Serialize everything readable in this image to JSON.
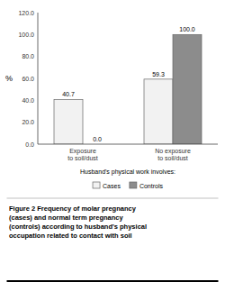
{
  "chart_data": {
    "type": "bar",
    "caption": "Figure 2 Frequency of molar pregnancy\n(cases) and normal term pregnancy\n(controls) according to husband's physical\noccupation related to contact with soil",
    "xlabel": "Husband's physical work involves:",
    "ylabel": "%",
    "categories": [
      "Exposure\nto soil/dust",
      "No exposure\nto soil/dust"
    ],
    "series": [
      {
        "name": "Cases",
        "color": "#f2f2f2",
        "values": [
          40.7,
          59.3
        ],
        "value_labels": [
          "40.7",
          "59.3"
        ]
      },
      {
        "name": "Controls",
        "color": "#8c8c8c",
        "values": [
          0.0,
          100.0
        ],
        "value_labels": [
          "0.0",
          "100.0"
        ]
      }
    ],
    "ylim": [
      0,
      120
    ],
    "yticks": [
      {
        "value": 0,
        "label": "0.0"
      },
      {
        "value": 20,
        "label": "20.0"
      },
      {
        "value": 40,
        "label": "40.0"
      },
      {
        "value": 60,
        "label": "60.0"
      },
      {
        "value": 80,
        "label": "80.0"
      },
      {
        "value": 100,
        "label": "100.0"
      },
      {
        "value": 120,
        "label": "120.0"
      }
    ],
    "grid": false,
    "legend": "bottom",
    "data_labels": true
  }
}
